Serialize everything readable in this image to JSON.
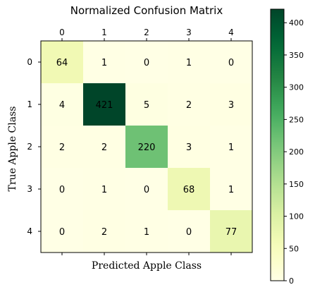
{
  "chart_data": {
    "type": "heatmap",
    "title": "Normalized Confusion Matrix",
    "xlabel": "Predicted Apple Class",
    "ylabel": "True Apple Class",
    "x_categories": [
      "0",
      "1",
      "2",
      "3",
      "4"
    ],
    "y_categories": [
      "0",
      "1",
      "2",
      "3",
      "4"
    ],
    "values": [
      [
        64,
        1,
        0,
        1,
        0
      ],
      [
        4,
        421,
        5,
        2,
        3
      ],
      [
        2,
        2,
        220,
        3,
        1
      ],
      [
        0,
        1,
        0,
        68,
        1
      ],
      [
        0,
        2,
        1,
        0,
        77
      ]
    ],
    "colormap": "YlGn",
    "x_axis_position": "top",
    "colorbar": {
      "range": [
        0,
        421
      ],
      "ticks": [
        0,
        50,
        100,
        150,
        200,
        250,
        300,
        350,
        400
      ]
    },
    "colors": {
      "low": "#ffffe5",
      "high": "#004529"
    }
  }
}
